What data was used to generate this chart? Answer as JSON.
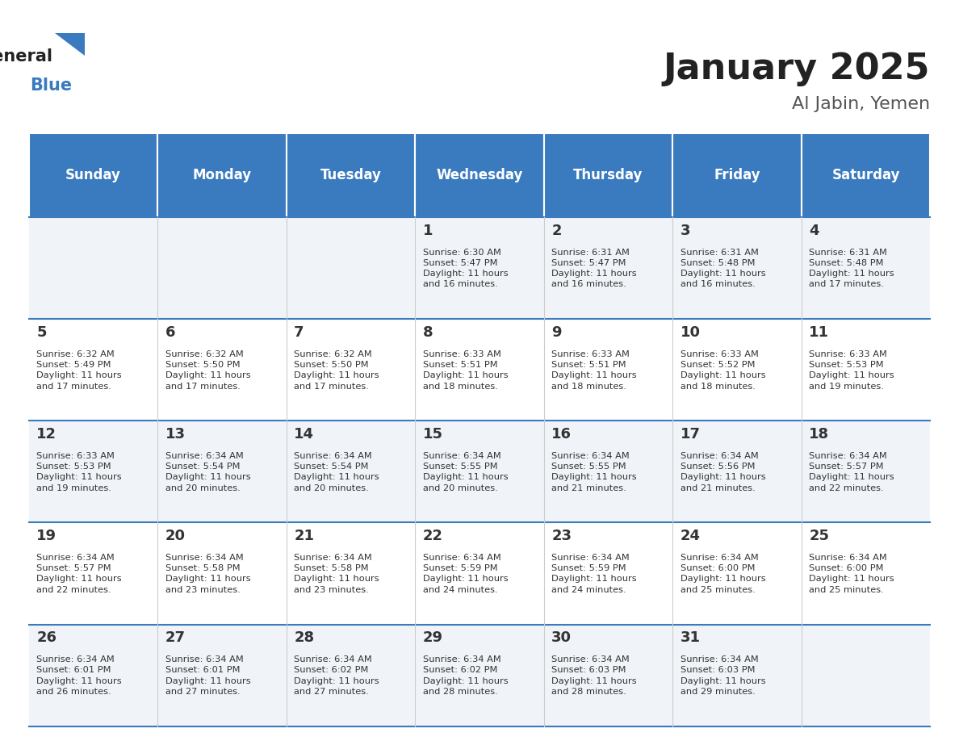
{
  "title": "January 2025",
  "subtitle": "Al Jabin, Yemen",
  "days_of_week": [
    "Sunday",
    "Monday",
    "Tuesday",
    "Wednesday",
    "Thursday",
    "Friday",
    "Saturday"
  ],
  "header_bg_color": "#3a7abf",
  "header_text_color": "#ffffff",
  "row_bg_colors": [
    "#f0f4f8",
    "#ffffff"
  ],
  "cell_border_color": "#3a7abf",
  "day_number_color": "#333333",
  "info_text_color": "#333333",
  "title_color": "#222222",
  "subtitle_color": "#555555",
  "calendar_data": [
    [
      {
        "day": null,
        "sunrise": null,
        "sunset": null,
        "daylight": null
      },
      {
        "day": null,
        "sunrise": null,
        "sunset": null,
        "daylight": null
      },
      {
        "day": null,
        "sunrise": null,
        "sunset": null,
        "daylight": null
      },
      {
        "day": 1,
        "sunrise": "6:30 AM",
        "sunset": "5:47 PM",
        "daylight": "11 hours and 16 minutes."
      },
      {
        "day": 2,
        "sunrise": "6:31 AM",
        "sunset": "5:47 PM",
        "daylight": "11 hours and 16 minutes."
      },
      {
        "day": 3,
        "sunrise": "6:31 AM",
        "sunset": "5:48 PM",
        "daylight": "11 hours and 16 minutes."
      },
      {
        "day": 4,
        "sunrise": "6:31 AM",
        "sunset": "5:48 PM",
        "daylight": "11 hours and 17 minutes."
      }
    ],
    [
      {
        "day": 5,
        "sunrise": "6:32 AM",
        "sunset": "5:49 PM",
        "daylight": "11 hours and 17 minutes."
      },
      {
        "day": 6,
        "sunrise": "6:32 AM",
        "sunset": "5:50 PM",
        "daylight": "11 hours and 17 minutes."
      },
      {
        "day": 7,
        "sunrise": "6:32 AM",
        "sunset": "5:50 PM",
        "daylight": "11 hours and 17 minutes."
      },
      {
        "day": 8,
        "sunrise": "6:33 AM",
        "sunset": "5:51 PM",
        "daylight": "11 hours and 18 minutes."
      },
      {
        "day": 9,
        "sunrise": "6:33 AM",
        "sunset": "5:51 PM",
        "daylight": "11 hours and 18 minutes."
      },
      {
        "day": 10,
        "sunrise": "6:33 AM",
        "sunset": "5:52 PM",
        "daylight": "11 hours and 18 minutes."
      },
      {
        "day": 11,
        "sunrise": "6:33 AM",
        "sunset": "5:53 PM",
        "daylight": "11 hours and 19 minutes."
      }
    ],
    [
      {
        "day": 12,
        "sunrise": "6:33 AM",
        "sunset": "5:53 PM",
        "daylight": "11 hours and 19 minutes."
      },
      {
        "day": 13,
        "sunrise": "6:34 AM",
        "sunset": "5:54 PM",
        "daylight": "11 hours and 20 minutes."
      },
      {
        "day": 14,
        "sunrise": "6:34 AM",
        "sunset": "5:54 PM",
        "daylight": "11 hours and 20 minutes."
      },
      {
        "day": 15,
        "sunrise": "6:34 AM",
        "sunset": "5:55 PM",
        "daylight": "11 hours and 20 minutes."
      },
      {
        "day": 16,
        "sunrise": "6:34 AM",
        "sunset": "5:55 PM",
        "daylight": "11 hours and 21 minutes."
      },
      {
        "day": 17,
        "sunrise": "6:34 AM",
        "sunset": "5:56 PM",
        "daylight": "11 hours and 21 minutes."
      },
      {
        "day": 18,
        "sunrise": "6:34 AM",
        "sunset": "5:57 PM",
        "daylight": "11 hours and 22 minutes."
      }
    ],
    [
      {
        "day": 19,
        "sunrise": "6:34 AM",
        "sunset": "5:57 PM",
        "daylight": "11 hours and 22 minutes."
      },
      {
        "day": 20,
        "sunrise": "6:34 AM",
        "sunset": "5:58 PM",
        "daylight": "11 hours and 23 minutes."
      },
      {
        "day": 21,
        "sunrise": "6:34 AM",
        "sunset": "5:58 PM",
        "daylight": "11 hours and 23 minutes."
      },
      {
        "day": 22,
        "sunrise": "6:34 AM",
        "sunset": "5:59 PM",
        "daylight": "11 hours and 24 minutes."
      },
      {
        "day": 23,
        "sunrise": "6:34 AM",
        "sunset": "5:59 PM",
        "daylight": "11 hours and 24 minutes."
      },
      {
        "day": 24,
        "sunrise": "6:34 AM",
        "sunset": "6:00 PM",
        "daylight": "11 hours and 25 minutes."
      },
      {
        "day": 25,
        "sunrise": "6:34 AM",
        "sunset": "6:00 PM",
        "daylight": "11 hours and 25 minutes."
      }
    ],
    [
      {
        "day": 26,
        "sunrise": "6:34 AM",
        "sunset": "6:01 PM",
        "daylight": "11 hours and 26 minutes."
      },
      {
        "day": 27,
        "sunrise": "6:34 AM",
        "sunset": "6:01 PM",
        "daylight": "11 hours and 27 minutes."
      },
      {
        "day": 28,
        "sunrise": "6:34 AM",
        "sunset": "6:02 PM",
        "daylight": "11 hours and 27 minutes."
      },
      {
        "day": 29,
        "sunrise": "6:34 AM",
        "sunset": "6:02 PM",
        "daylight": "11 hours and 28 minutes."
      },
      {
        "day": 30,
        "sunrise": "6:34 AM",
        "sunset": "6:03 PM",
        "daylight": "11 hours and 28 minutes."
      },
      {
        "day": 31,
        "sunrise": "6:34 AM",
        "sunset": "6:03 PM",
        "daylight": "11 hours and 29 minutes."
      },
      {
        "day": null,
        "sunrise": null,
        "sunset": null,
        "daylight": null
      }
    ]
  ]
}
